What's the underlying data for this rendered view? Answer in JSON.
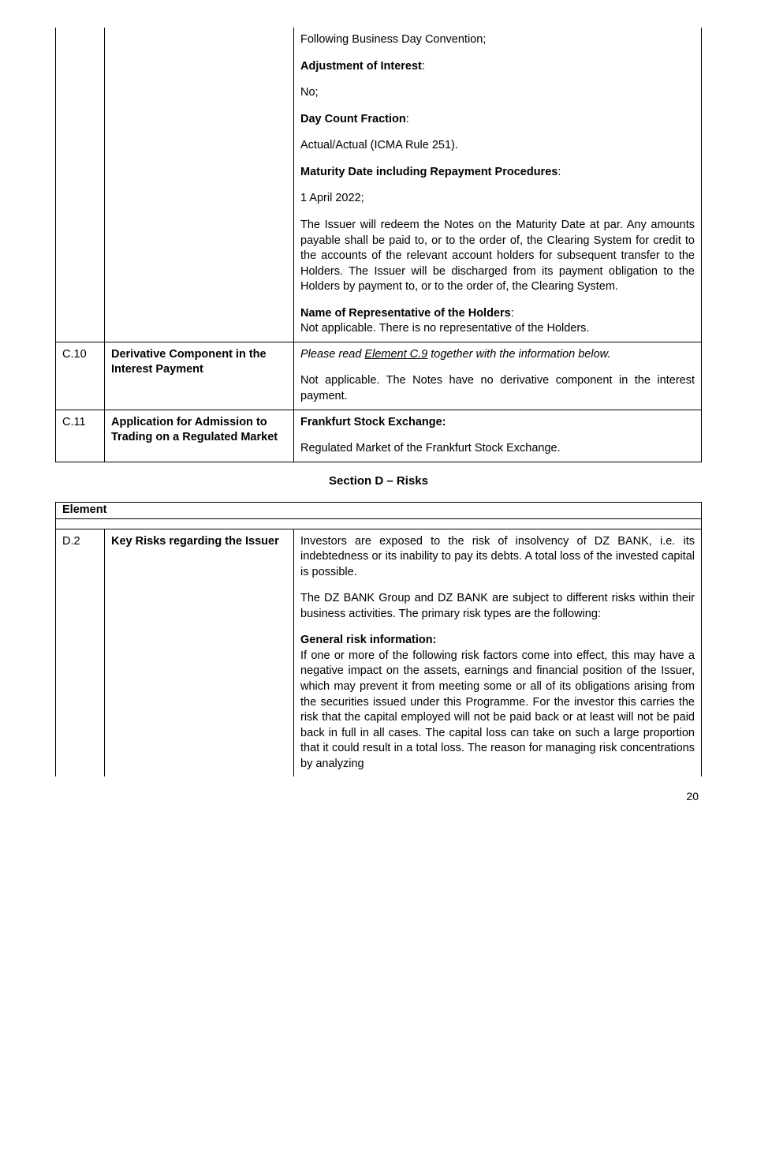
{
  "tableC": {
    "rowTop": {
      "p1": "Following Business Day Convention;",
      "h2": "Adjustment of Interest",
      "p2": "No;",
      "h3": "Day Count Fraction",
      "p3": "Actual/Actual (ICMA Rule 251).",
      "h4": "Maturity Date including Repayment Procedures",
      "p4": "1 April 2022;",
      "p5": "The Issuer will redeem the Notes on the Maturity Date at par. Any amounts payable shall be paid to, or to the order of, the Clearing System for credit to the accounts of the relevant account holders for subsequent transfer to the Holders. The Issuer will be discharged from its payment obligation to the Holders by payment to, or to the order of, the Clearing System.",
      "h5": "Name of Representative of the Holders",
      "p6": "Not applicable. There is no representative of the Holders."
    },
    "rowC10": {
      "code": "C.10",
      "title": "Derivative Component in the Interest Payment",
      "p1a": "Please read ",
      "p1link": "Element C.9",
      "p1b": " together with the information below.",
      "p2": "Not applicable. The Notes have no derivative component in the interest payment."
    },
    "rowC11": {
      "code": "C.11",
      "title": "Application for Admission to Trading on a Regulated Market",
      "h1": "Frankfurt Stock Exchange:",
      "p1": "Regulated Market of the Frankfurt Stock Exchange."
    }
  },
  "sectionD": {
    "title": "Section D – Risks",
    "elementLabel": "Element",
    "rowD2": {
      "code": "D.2",
      "title": "Key Risks regarding the Issuer",
      "p1": "Investors are exposed to the risk of insolvency of DZ BANK, i.e. its indebtedness or its inability to pay its debts. A total loss of the invested capital is possible.",
      "p2": "The DZ BANK Group and DZ BANK are subject to different risks within their business activities. The primary risk types are the following:",
      "h1": "General risk information:",
      "p3": "If one or more of the following risk factors come into effect, this may have a negative impact on the assets, earnings and financial position of the Issuer, which may prevent it from meeting some or all of its obligations arising from the securities issued under this Programme. For the investor this carries the risk that the capital employed will not be paid back or at least will not be paid back in full in all cases. The capital loss can take on such a large proportion that it could result in a total loss. The reason for managing risk concentrations by analyzing"
    }
  },
  "pageNumber": "20"
}
